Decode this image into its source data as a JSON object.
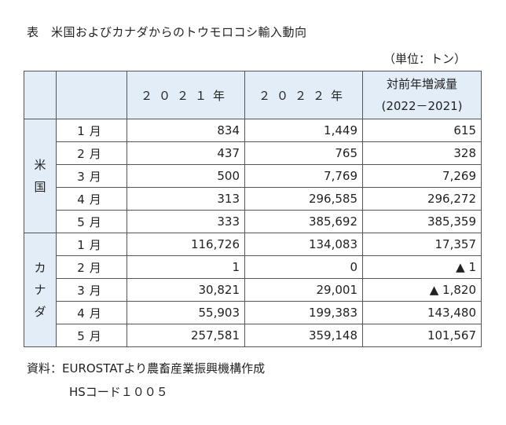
{
  "title": "表　米国およびカナダからのトウモロコシ輸入動向",
  "unit": "（単位：トン）",
  "header": {
    "col_2021": "２０２１年",
    "col_2022": "２０２２年",
    "col_change_line1": "対前年増減量",
    "col_change_line2": "(2022－2021)"
  },
  "groups": [
    {
      "name": "米国",
      "name_chars": [
        "米",
        "国"
      ],
      "rows": [
        {
          "month": "1月",
          "y2021": "834",
          "y2022": "1,449",
          "change": "615"
        },
        {
          "month": "2月",
          "y2021": "437",
          "y2022": "765",
          "change": "328"
        },
        {
          "month": "3月",
          "y2021": "500",
          "y2022": "7,769",
          "change": "7,269"
        },
        {
          "month": "4月",
          "y2021": "313",
          "y2022": "296,585",
          "change": "296,272"
        },
        {
          "month": "5月",
          "y2021": "333",
          "y2022": "385,692",
          "change": "385,359"
        }
      ]
    },
    {
      "name": "カナダ",
      "name_chars": [
        "カ",
        "ナ",
        "ダ"
      ],
      "rows": [
        {
          "month": "1月",
          "y2021": "116,726",
          "y2022": "134,083",
          "change": "17,357"
        },
        {
          "month": "2月",
          "y2021": "1",
          "y2022": "0",
          "change": "▲ 1"
        },
        {
          "month": "3月",
          "y2021": "30,821",
          "y2022": "29,001",
          "change": "▲ 1,820"
        },
        {
          "month": "4月",
          "y2021": "55,903",
          "y2022": "199,383",
          "change": "143,480"
        },
        {
          "month": "5月",
          "y2021": "257,581",
          "y2022": "359,148",
          "change": "101,567"
        }
      ]
    }
  ],
  "notes": {
    "source": "資料：EUROSTATより農畜産業振興機構作成",
    "hs_code": "HSコード１００５"
  },
  "colors": {
    "header_bg": "#e3edf7",
    "border": "#555555"
  }
}
